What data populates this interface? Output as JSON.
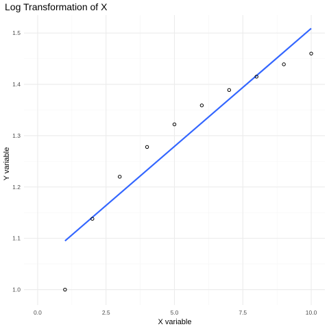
{
  "chart_data": {
    "type": "scatter",
    "title": "Log Transformation of X",
    "xlabel": "X variable",
    "ylabel": "Y variable",
    "xlim": [
      -0.5,
      10.5
    ],
    "ylim": [
      0.97,
      1.535
    ],
    "x_ticks": [
      0,
      2.5,
      5,
      7.5,
      10
    ],
    "x_tick_labels": [
      "0.0",
      "2.5",
      "5.0",
      "7.5",
      "10.0"
    ],
    "y_ticks": [
      1.0,
      1.1,
      1.2,
      1.3,
      1.4,
      1.5
    ],
    "y_tick_labels": [
      "1.0",
      "1.1",
      "1.2",
      "1.3",
      "1.4",
      "1.5"
    ],
    "grid": true,
    "points": {
      "x": [
        1,
        2,
        3,
        4,
        5,
        6,
        7,
        8,
        9,
        10
      ],
      "y": [
        1.0,
        1.138,
        1.22,
        1.278,
        1.322,
        1.359,
        1.389,
        1.415,
        1.439,
        1.46
      ]
    },
    "fit_line": {
      "x": [
        1,
        10
      ],
      "y": [
        1.095,
        1.509
      ]
    },
    "colors": {
      "line": "#3366ff",
      "points": "#000000",
      "grid_major": "#ebebeb",
      "grid_minor": "#f5f5f5"
    }
  }
}
